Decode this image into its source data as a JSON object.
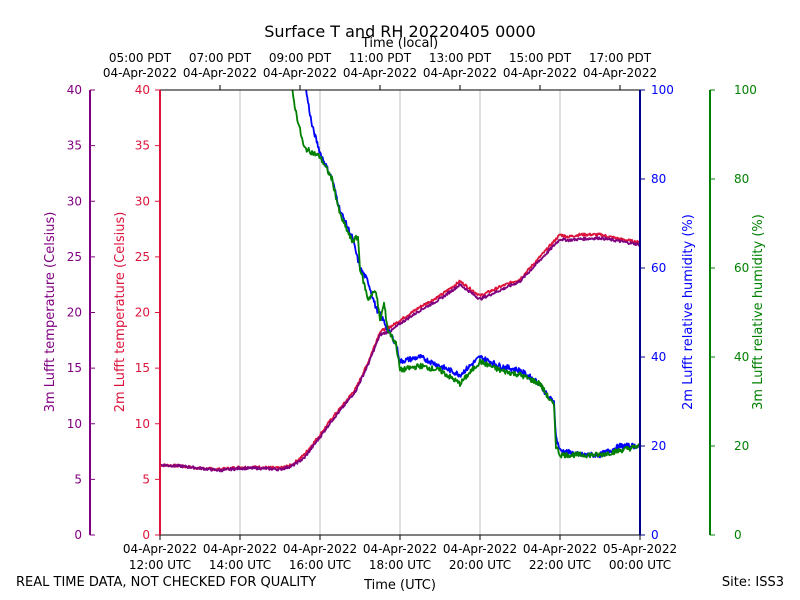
{
  "chart_data": {
    "type": "line",
    "title": "Surface T and RH 20220405 0000",
    "top_axis_label": "Time (local)",
    "xlabel": "Time (UTC)",
    "left_outer_axis_label": "3m Lufft temperature (Celsius)",
    "left_inner_axis_label": "2m Lufft temperature (Celsius)",
    "right_inner_axis_label": "2m Lufft relative humidity (%)",
    "right_outer_axis_label": "3m Lufft relative humidity (%)",
    "x_range_hours_utc": [
      0,
      12
    ],
    "temp_ylim": [
      0,
      40
    ],
    "rh_ylim": [
      0,
      100
    ],
    "temp_ticks": [
      0,
      5,
      10,
      15,
      20,
      25,
      30,
      35,
      40
    ],
    "rh_ticks": [
      0,
      20,
      40,
      60,
      80,
      100
    ],
    "bottom_ticks": [
      {
        "h": 0,
        "date": "04-Apr-2022",
        "time": "12:00 UTC"
      },
      {
        "h": 2,
        "date": "04-Apr-2022",
        "time": "14:00 UTC"
      },
      {
        "h": 4,
        "date": "04-Apr-2022",
        "time": "16:00 UTC"
      },
      {
        "h": 6,
        "date": "04-Apr-2022",
        "time": "18:00 UTC"
      },
      {
        "h": 8,
        "date": "04-Apr-2022",
        "time": "20:00 UTC"
      },
      {
        "h": 10,
        "date": "04-Apr-2022",
        "time": "22:00 UTC"
      },
      {
        "h": 12,
        "date": "05-Apr-2022",
        "time": "00:00 UTC"
      }
    ],
    "top_ticks": [
      {
        "h": -0.5,
        "time": "05:00 PDT",
        "date": "04-Apr-2022"
      },
      {
        "h": 1.5,
        "time": "07:00 PDT",
        "date": "04-Apr-2022"
      },
      {
        "h": 3.5,
        "time": "09:00 PDT",
        "date": "04-Apr-2022"
      },
      {
        "h": 5.5,
        "time": "11:00 PDT",
        "date": "04-Apr-2022"
      },
      {
        "h": 7.5,
        "time": "13:00 PDT",
        "date": "04-Apr-2022"
      },
      {
        "h": 9.5,
        "time": "15:00 PDT",
        "date": "04-Apr-2022"
      },
      {
        "h": 11.5,
        "time": "17:00 PDT",
        "date": "04-Apr-2022"
      }
    ],
    "series": [
      {
        "name": "2m Lufft temperature",
        "axis": "temp",
        "color": "#dc143c",
        "x": [
          0,
          0.5,
          1,
          1.5,
          2,
          2.5,
          3,
          3.3,
          3.6,
          4,
          4.3,
          4.6,
          4.9,
          5.2,
          5.5,
          5.8,
          6,
          6.5,
          7,
          7.5,
          8,
          8.5,
          9,
          9.5,
          10,
          10.2,
          10.5,
          11,
          11.5,
          12
        ],
        "y": [
          6.3,
          6.2,
          6.0,
          5.9,
          6.1,
          6.1,
          6.0,
          6.3,
          7.2,
          9.0,
          10.5,
          11.8,
          13.2,
          15.5,
          18.3,
          18.8,
          19.3,
          20.5,
          21.5,
          22.8,
          21.5,
          22.3,
          23.0,
          25.0,
          27.0,
          26.8,
          27.0,
          27.0,
          26.6,
          26.3
        ]
      },
      {
        "name": "3m Lufft temperature",
        "axis": "temp",
        "color": "#800080",
        "x": [
          0,
          0.5,
          1,
          1.5,
          2,
          2.5,
          3,
          3.3,
          3.6,
          4,
          4.3,
          4.6,
          4.9,
          5.2,
          5.5,
          5.8,
          6,
          6.5,
          7,
          7.5,
          8,
          8.5,
          9,
          9.5,
          10,
          10.2,
          10.5,
          11,
          11.5,
          12
        ],
        "y": [
          6.3,
          6.2,
          6.0,
          5.8,
          6.0,
          6.0,
          5.9,
          6.2,
          6.9,
          8.8,
          10.3,
          11.6,
          13.0,
          15.3,
          18.0,
          18.4,
          19.0,
          20.2,
          21.2,
          22.5,
          21.2,
          22.0,
          22.8,
          24.7,
          26.6,
          26.5,
          26.6,
          26.7,
          26.4,
          26.1
        ]
      },
      {
        "name": "2m Lufft relative humidity",
        "axis": "rh",
        "color": "#0000ff",
        "x": [
          3.65,
          3.8,
          4,
          4.3,
          4.5,
          4.8,
          5,
          5.2,
          5.4,
          5.6,
          5.7,
          5.9,
          6,
          6.5,
          7,
          7.5,
          8,
          8.5,
          9,
          9.5,
          9.7,
          9.85,
          9.9,
          10,
          10.5,
          11,
          11.5,
          12
        ],
        "y": [
          100,
          92,
          86,
          80,
          73,
          67,
          60,
          57,
          51,
          48,
          46,
          43,
          39,
          40,
          38,
          36,
          40,
          38,
          37,
          34,
          31,
          30,
          22,
          19,
          18,
          18,
          20,
          20
        ]
      },
      {
        "name": "3m Lufft relative humidity",
        "axis": "rh",
        "color": "#008000",
        "x": [
          3.3,
          3.4,
          3.6,
          4,
          4.3,
          4.5,
          4.8,
          4.95,
          5,
          5.2,
          5.4,
          5.5,
          5.6,
          5.7,
          5.9,
          6,
          6.5,
          7,
          7.5,
          8,
          8.5,
          9,
          9.5,
          9.7,
          9.85,
          9.9,
          10,
          10.5,
          11,
          11.5,
          12
        ],
        "y": [
          100,
          95,
          87,
          85,
          80,
          72,
          66,
          67,
          60,
          53,
          55,
          48,
          52,
          46,
          43,
          37,
          38,
          37,
          34,
          39,
          37,
          36,
          34,
          31,
          29,
          20,
          18,
          18,
          18,
          19,
          20
        ]
      }
    ]
  },
  "footer": {
    "disclaimer": "REAL TIME DATA, NOT CHECKED FOR QUALITY",
    "site": "Site: ISS3"
  }
}
